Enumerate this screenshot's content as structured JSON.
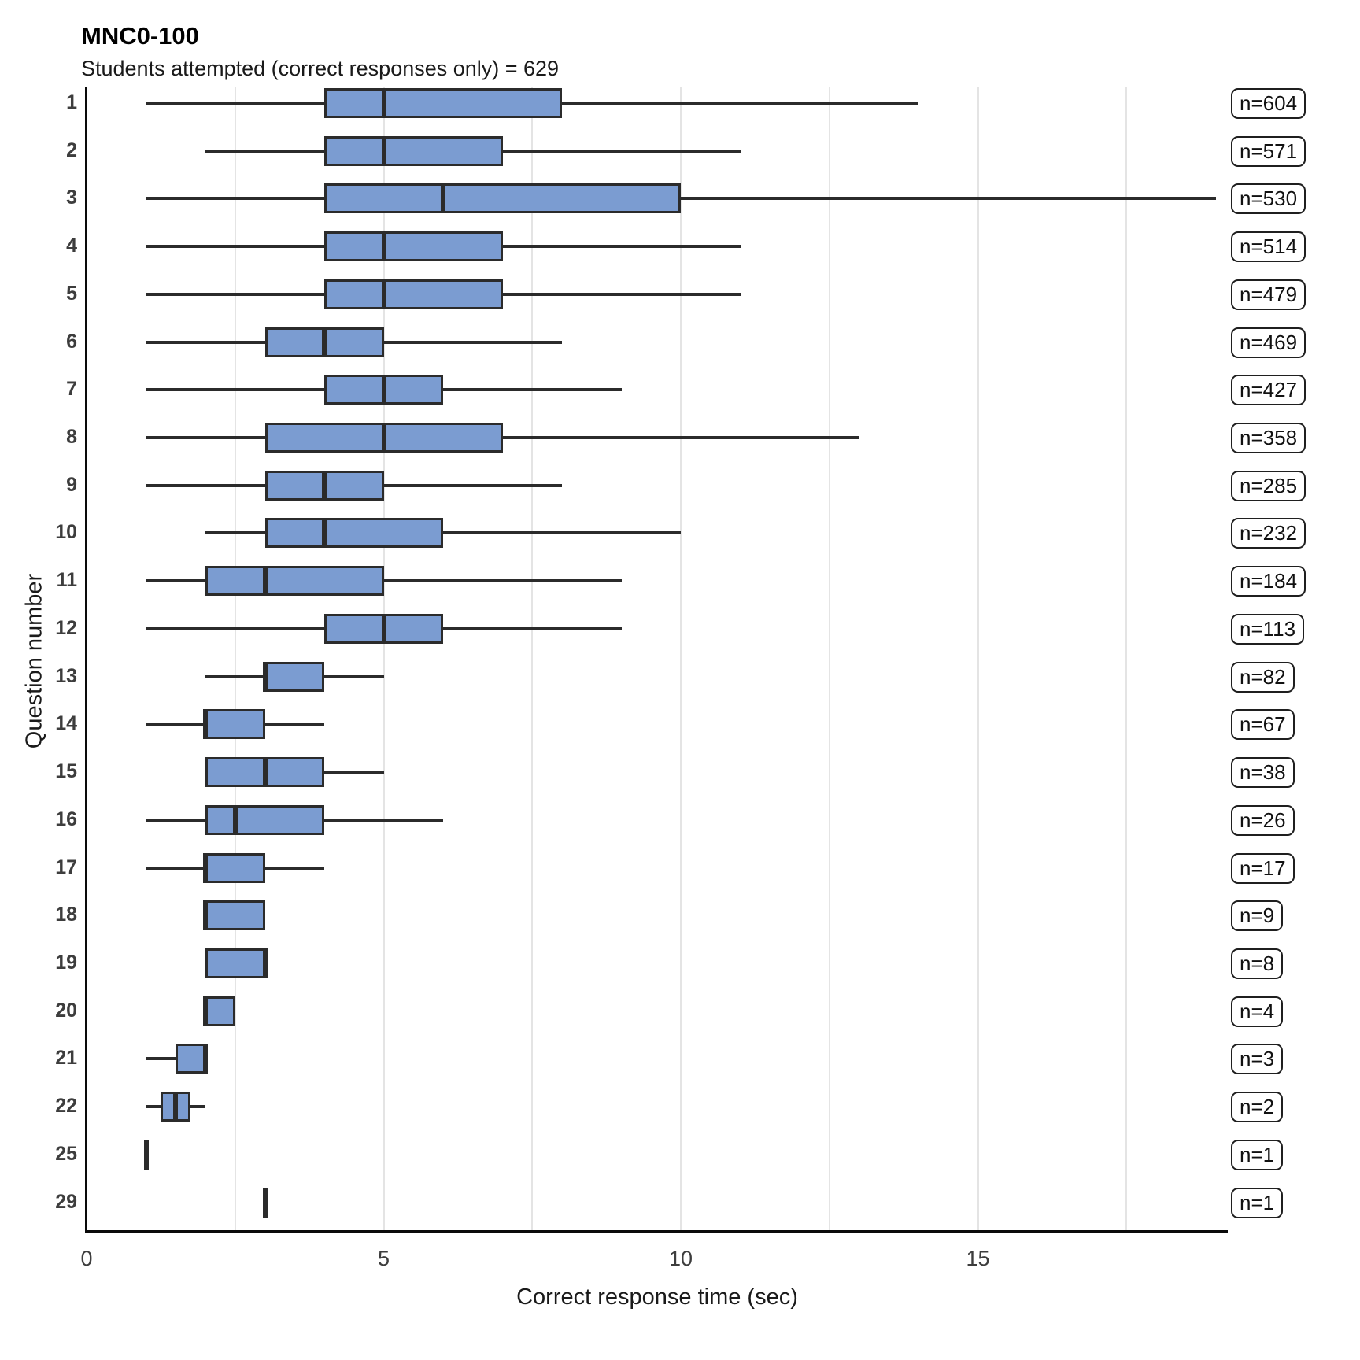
{
  "colors": {
    "box_fill": "#7b9cd1",
    "box_border": "#2b2b2b",
    "whisker": "#2b2b2b",
    "gridline": "#e4e4e4",
    "axis_spine": "#0a0a0a",
    "tick_text": "#3d3d3d",
    "badge_border": "#1f1f1f"
  },
  "chart_data": {
    "type": "boxplot",
    "orientation": "horizontal",
    "title": "MNC0-100",
    "subtitle": "Students attempted (correct responses only) = 629",
    "xlabel": "Correct response time (sec)",
    "ylabel": "Question number",
    "x_ticks": [
      0,
      5,
      10,
      15
    ],
    "x_gridlines": [
      2.5,
      5,
      7.5,
      10,
      12.5,
      15,
      17.5
    ],
    "xlim": [
      0,
      19.3
    ],
    "grid": "vertical-only",
    "legend": "none",
    "rows": [
      {
        "question": "1",
        "n": 604,
        "n_label": "n=604",
        "low": 1,
        "q1": 4,
        "median": 5,
        "q3": 8,
        "high": 14
      },
      {
        "question": "2",
        "n": 571,
        "n_label": "n=571",
        "low": 2,
        "q1": 4,
        "median": 5,
        "q3": 7,
        "high": 11
      },
      {
        "question": "3",
        "n": 530,
        "n_label": "n=530",
        "low": 1,
        "q1": 4,
        "median": 6,
        "q3": 10,
        "high": 19
      },
      {
        "question": "4",
        "n": 514,
        "n_label": "n=514",
        "low": 1,
        "q1": 4,
        "median": 5,
        "q3": 7,
        "high": 11
      },
      {
        "question": "5",
        "n": 479,
        "n_label": "n=479",
        "low": 1,
        "q1": 4,
        "median": 5,
        "q3": 7,
        "high": 11
      },
      {
        "question": "6",
        "n": 469,
        "n_label": "n=469",
        "low": 1,
        "q1": 3,
        "median": 4,
        "q3": 5,
        "high": 8
      },
      {
        "question": "7",
        "n": 427,
        "n_label": "n=427",
        "low": 1,
        "q1": 4,
        "median": 5,
        "q3": 6,
        "high": 9
      },
      {
        "question": "8",
        "n": 358,
        "n_label": "n=358",
        "low": 1,
        "q1": 3,
        "median": 5,
        "q3": 7,
        "high": 13
      },
      {
        "question": "9",
        "n": 285,
        "n_label": "n=285",
        "low": 1,
        "q1": 3,
        "median": 4,
        "q3": 5,
        "high": 8
      },
      {
        "question": "10",
        "n": 232,
        "n_label": "n=232",
        "low": 2,
        "q1": 3,
        "median": 4,
        "q3": 6,
        "high": 10
      },
      {
        "question": "11",
        "n": 184,
        "n_label": "n=184",
        "low": 1,
        "q1": 2,
        "median": 3,
        "q3": 5,
        "high": 9
      },
      {
        "question": "12",
        "n": 113,
        "n_label": "n=113",
        "low": 1,
        "q1": 4,
        "median": 5,
        "q3": 6,
        "high": 9
      },
      {
        "question": "13",
        "n": 82,
        "n_label": "n=82",
        "low": 2,
        "q1": 3,
        "median": 3,
        "q3": 4,
        "high": 5
      },
      {
        "question": "14",
        "n": 67,
        "n_label": "n=67",
        "low": 1,
        "q1": 2,
        "median": 2,
        "q3": 3,
        "high": 4
      },
      {
        "question": "15",
        "n": 38,
        "n_label": "n=38",
        "low": 2,
        "q1": 2,
        "median": 3,
        "q3": 4,
        "high": 5
      },
      {
        "question": "16",
        "n": 26,
        "n_label": "n=26",
        "low": 1,
        "q1": 2,
        "median": 2.5,
        "q3": 4,
        "high": 6
      },
      {
        "question": "17",
        "n": 17,
        "n_label": "n=17",
        "low": 1,
        "q1": 2,
        "median": 2,
        "q3": 3,
        "high": 4
      },
      {
        "question": "18",
        "n": 9,
        "n_label": "n=9",
        "low": 2,
        "q1": 2,
        "median": 2,
        "q3": 3,
        "high": 3
      },
      {
        "question": "19",
        "n": 8,
        "n_label": "n=8",
        "low": 2,
        "q1": 2,
        "median": 3,
        "q3": 3,
        "high": 3
      },
      {
        "question": "20",
        "n": 4,
        "n_label": "n=4",
        "low": 2,
        "q1": 2,
        "median": 2,
        "q3": 2.5,
        "high": 2.5
      },
      {
        "question": "21",
        "n": 3,
        "n_label": "n=3",
        "low": 1,
        "q1": 1.5,
        "median": 2,
        "q3": 2,
        "high": 2
      },
      {
        "question": "22",
        "n": 2,
        "n_label": "n=2",
        "low": 1,
        "q1": 1.25,
        "median": 1.5,
        "q3": 1.75,
        "high": 2
      },
      {
        "question": "25",
        "n": 1,
        "n_label": "n=1",
        "low": 1,
        "q1": 1,
        "median": 1,
        "q3": 1,
        "high": 1
      },
      {
        "question": "29",
        "n": 1,
        "n_label": "n=1",
        "low": 3,
        "q1": 3,
        "median": 3,
        "q3": 3,
        "high": 3
      }
    ]
  }
}
